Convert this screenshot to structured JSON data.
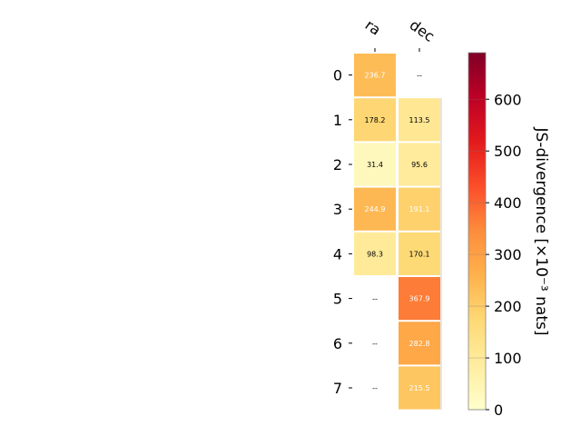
{
  "chart_data": {
    "type": "heatmap",
    "columns": [
      "ra",
      "dec"
    ],
    "rows": [
      "0",
      "1",
      "2",
      "3",
      "4",
      "5",
      "6",
      "7"
    ],
    "cells": [
      {
        "row": "0",
        "col": "ra",
        "value": 236.7,
        "label": "236.7"
      },
      {
        "row": "0",
        "col": "dec",
        "value": null,
        "label": "--"
      },
      {
        "row": "1",
        "col": "ra",
        "value": 178.2,
        "label": "178.2"
      },
      {
        "row": "1",
        "col": "dec",
        "value": 113.5,
        "label": "113.5"
      },
      {
        "row": "2",
        "col": "ra",
        "value": 31.4,
        "label": "31.4"
      },
      {
        "row": "2",
        "col": "dec",
        "value": 95.6,
        "label": "95.6"
      },
      {
        "row": "3",
        "col": "ra",
        "value": 244.9,
        "label": "244.9"
      },
      {
        "row": "3",
        "col": "dec",
        "value": 191.1,
        "label": "191.1"
      },
      {
        "row": "4",
        "col": "ra",
        "value": 98.3,
        "label": "98.3"
      },
      {
        "row": "4",
        "col": "dec",
        "value": 170.1,
        "label": "170.1"
      },
      {
        "row": "5",
        "col": "ra",
        "value": null,
        "label": "--"
      },
      {
        "row": "5",
        "col": "dec",
        "value": 367.9,
        "label": "367.9"
      },
      {
        "row": "6",
        "col": "ra",
        "value": null,
        "label": "--"
      },
      {
        "row": "6",
        "col": "dec",
        "value": 282.8,
        "label": "282.8"
      },
      {
        "row": "7",
        "col": "ra",
        "value": null,
        "label": "--"
      },
      {
        "row": "7",
        "col": "dec",
        "value": 215.5,
        "label": "215.5"
      }
    ],
    "colorbar": {
      "label": "JS-divergence [×10⁻³ nats]",
      "min": 0,
      "max": 690,
      "ticks": [
        0,
        100,
        200,
        300,
        400,
        500,
        600
      ],
      "colormap": "YlOrRd"
    },
    "title": "",
    "xlabel": "",
    "ylabel": ""
  }
}
